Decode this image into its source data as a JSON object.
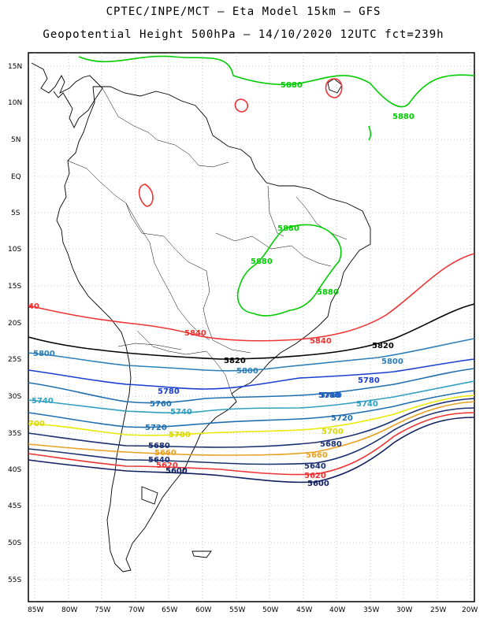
{
  "header": {
    "line1": "CPTEC/INPE/MCT –  Eta Model 15km – GFS",
    "line2": "Geopotential Height 500hPa – 14/10/2020 12UTC fct=239h"
  },
  "axes": {
    "lat_labels": [
      "15N",
      "10N",
      "5N",
      "EQ",
      "5S",
      "10S",
      "15S",
      "20S",
      "25S",
      "30S",
      "35S",
      "40S",
      "45S",
      "50S",
      "55S"
    ],
    "lon_labels": [
      "85W",
      "80W",
      "75W",
      "70W",
      "65W",
      "60W",
      "55W",
      "50W",
      "45W",
      "40W",
      "35W",
      "30W",
      "25W",
      "20W"
    ]
  },
  "contours": [
    {
      "level": "5880",
      "color": "#00cc00",
      "labels": [
        "5880",
        "5880",
        "5880",
        "5880",
        "5880"
      ]
    },
    {
      "level": "5840",
      "color": "#ee3333",
      "labels": [
        "5840",
        "5840",
        "40"
      ]
    },
    {
      "level": "5820",
      "color": "#000000",
      "labels": [
        "5820",
        "5820"
      ]
    },
    {
      "level": "5800",
      "color": "#2c7fb8",
      "labels": [
        "5800",
        "5800",
        "5800"
      ]
    },
    {
      "level": "5780",
      "color": "#1a3fd0",
      "labels": [
        "5780",
        "5780",
        "5780"
      ]
    },
    {
      "level": "5760",
      "color": "#1f6fb0",
      "labels": [
        "5760",
        "5760"
      ]
    },
    {
      "level": "5740",
      "color": "#31a0c0",
      "labels": [
        "5740",
        "5740",
        "5740"
      ]
    },
    {
      "level": "5720",
      "color": "#1f6fb0",
      "labels": [
        "5720",
        "5720"
      ]
    },
    {
      "level": "5700",
      "color": "#e8e800",
      "labels": [
        "5700",
        "5700",
        "700"
      ]
    },
    {
      "level": "5680",
      "color": "#1a3070",
      "labels": [
        "5680",
        "5680"
      ]
    },
    {
      "level": "5660",
      "color": "#e8a020",
      "labels": [
        "5660",
        "5660"
      ]
    },
    {
      "level": "5640",
      "color": "#1a3070",
      "labels": [
        "5640",
        "5640"
      ]
    },
    {
      "level": "5620",
      "color": "#ee3333",
      "labels": [
        "5620",
        "5620"
      ]
    },
    {
      "level": "5600",
      "color": "#102060",
      "labels": [
        "5600",
        "5600"
      ]
    }
  ]
}
